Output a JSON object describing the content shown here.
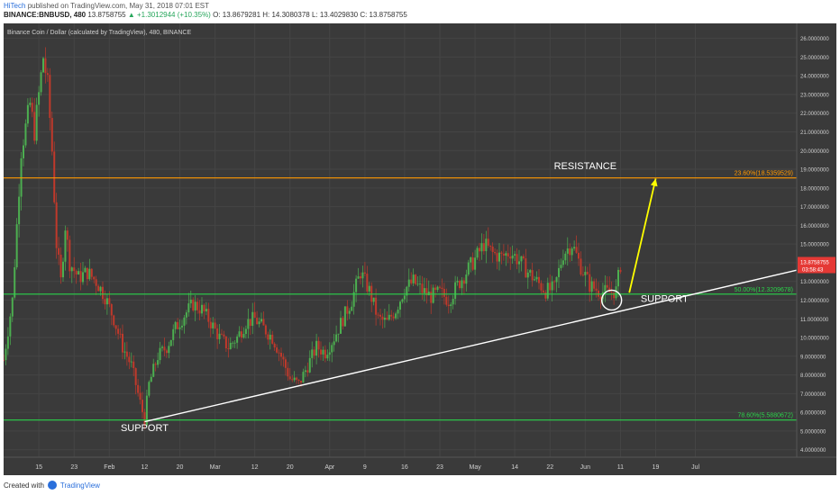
{
  "header": {
    "author": "HiTech",
    "published": "published on TradingView.com, May 31, 2018 07:01 EST",
    "symbol": "BINANCE:BNBUSD, 480",
    "last": "13.8758755",
    "change": "▲ +1.3012944 (+10.35%)",
    "ohlc": "O: 13.8679281 H: 14.3080378 L: 13.4029830 C: 13.8758755"
  },
  "footer": {
    "created": "Created with",
    "brand": "TradingView"
  },
  "chart_data": {
    "type": "candlestick",
    "title": "Binance Coin / Dollar (calculated by TradingView), 480, BINANCE",
    "xlabel": "",
    "ylabel": "",
    "ylim": [
      3.6,
      26.8
    ],
    "xlim": [
      0,
      180
    ],
    "x_ticks": [
      {
        "x": 8,
        "label": "15"
      },
      {
        "x": 16,
        "label": "23"
      },
      {
        "x": 24,
        "label": "Feb"
      },
      {
        "x": 32,
        "label": "12"
      },
      {
        "x": 40,
        "label": "20"
      },
      {
        "x": 48,
        "label": "Mar"
      },
      {
        "x": 57,
        "label": "12"
      },
      {
        "x": 65,
        "label": "20"
      },
      {
        "x": 74,
        "label": "Apr"
      },
      {
        "x": 82,
        "label": "9"
      },
      {
        "x": 91,
        "label": "16"
      },
      {
        "x": 99,
        "label": "23"
      },
      {
        "x": 107,
        "label": "May"
      },
      {
        "x": 116,
        "label": "14"
      },
      {
        "x": 124,
        "label": "22"
      },
      {
        "x": 132,
        "label": "Jun"
      },
      {
        "x": 140,
        "label": "11"
      },
      {
        "x": 148,
        "label": "19"
      },
      {
        "x": 157,
        "label": "Jul"
      }
    ],
    "y_ticks": [
      "4.0000000",
      "5.0000000",
      "6.0000000",
      "7.0000000",
      "8.0000000",
      "9.0000000",
      "10.0000000",
      "11.0000000",
      "12.0000000",
      "13.0000000",
      "14.0000000",
      "15.0000000",
      "16.0000000",
      "17.0000000",
      "18.0000000",
      "19.0000000",
      "20.0000000",
      "21.0000000",
      "22.0000000",
      "23.0000000",
      "24.0000000",
      "25.0000000",
      "26.0000000"
    ],
    "price_path": [
      [
        0,
        8.8
      ],
      [
        2,
        12
      ],
      [
        4,
        20
      ],
      [
        6,
        22.5
      ],
      [
        7,
        21
      ],
      [
        9,
        25
      ],
      [
        10,
        23.5
      ],
      [
        11,
        20
      ],
      [
        12,
        15
      ],
      [
        13,
        13
      ],
      [
        14,
        16
      ],
      [
        15,
        14
      ],
      [
        17,
        13.2
      ],
      [
        19,
        13.5
      ],
      [
        21,
        13.0
      ],
      [
        23,
        12.2
      ],
      [
        25,
        11
      ],
      [
        27,
        9.5
      ],
      [
        29,
        8.5
      ],
      [
        31,
        6.5
      ],
      [
        32,
        5.6
      ],
      [
        33,
        7.5
      ],
      [
        35,
        9
      ],
      [
        37,
        9.5
      ],
      [
        39,
        10.5
      ],
      [
        41,
        11.2
      ],
      [
        43,
        11.8
      ],
      [
        45,
        11.5
      ],
      [
        47,
        10.8
      ],
      [
        49,
        10.0
      ],
      [
        51,
        9.5
      ],
      [
        53,
        10
      ],
      [
        55,
        10.8
      ],
      [
        57,
        11
      ],
      [
        59,
        10.5
      ],
      [
        61,
        10
      ],
      [
        63,
        9
      ],
      [
        65,
        7.8
      ],
      [
        67,
        7.5
      ],
      [
        69,
        8.5
      ],
      [
        71,
        9.5
      ],
      [
        73,
        9.2
      ],
      [
        75,
        10
      ],
      [
        77,
        11
      ],
      [
        79,
        12
      ],
      [
        81,
        13.5
      ],
      [
        83,
        12.5
      ],
      [
        85,
        11
      ],
      [
        87,
        10.8
      ],
      [
        89,
        11.5
      ],
      [
        91,
        12.6
      ],
      [
        93,
        13
      ],
      [
        95,
        12.5
      ],
      [
        97,
        12.2
      ],
      [
        99,
        12.4
      ],
      [
        101,
        12
      ],
      [
        103,
        12.8
      ],
      [
        105,
        13.5
      ],
      [
        107,
        14.2
      ],
      [
        109,
        15
      ],
      [
        111,
        14.5
      ],
      [
        113,
        14.3
      ],
      [
        115,
        14.6
      ],
      [
        117,
        14.1
      ],
      [
        119,
        13.5
      ],
      [
        121,
        13
      ],
      [
        123,
        12.5
      ],
      [
        125,
        12.6
      ],
      [
        127,
        14.5
      ],
      [
        129,
        15
      ],
      [
        131,
        13.8
      ],
      [
        133,
        12.8
      ],
      [
        135,
        12.5
      ],
      [
        137,
        12.4
      ],
      [
        139,
        12.5
      ],
      [
        140,
        13.9
      ]
    ],
    "trend_support": {
      "x1": 32,
      "y1": 5.5,
      "x2": 180,
      "y2": 13.6
    },
    "levels": [
      {
        "value": 18.5359529,
        "label": "23.60%(18.5359529)",
        "color": "#ff9800"
      },
      {
        "value": 12.3209678,
        "label": "50.00%(12.3209678)",
        "color": "#2bd34a"
      },
      {
        "value": 5.5880672,
        "label": "78.60%(5.5880672)",
        "color": "#2bd34a"
      }
    ],
    "annotations": [
      {
        "text": "RESISTANCE",
        "x": 132,
        "y": 19.0
      },
      {
        "text": "SUPPORT",
        "x": 150,
        "y": 11.9
      },
      {
        "text": "SUPPORT",
        "x": 32,
        "y": 5.0
      }
    ],
    "projection_arrow": {
      "x1": 142,
      "y1": 12.4,
      "x2": 148,
      "y2": 18.5,
      "color": "#ffff00"
    },
    "circle_marker": {
      "x": 138,
      "y": 12.0
    },
    "current_price": {
      "label": "13.8758755",
      "countdown": "03:58:43",
      "value": 13.8758755
    }
  }
}
